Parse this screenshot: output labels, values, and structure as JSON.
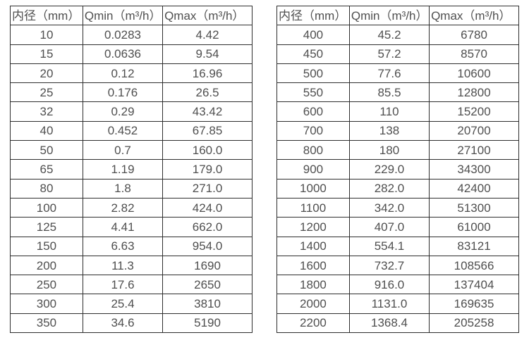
{
  "accent_colors": {
    "border": "#2e2e2e",
    "text": "#4f4f4f",
    "background": "#ffffff"
  },
  "chart_data": [
    {
      "type": "table",
      "title": "flow-rate-table-small-diameters",
      "columns": [
        "内径（mm）",
        "Qmin（m³/h）",
        "Qmax（m³/h）"
      ],
      "rows": [
        [
          "10",
          "0.0283",
          "4.42"
        ],
        [
          "15",
          "0.0636",
          "9.54"
        ],
        [
          "20",
          "0.12",
          "16.96"
        ],
        [
          "25",
          "0.176",
          "26.5"
        ],
        [
          "32",
          "0.29",
          "43.42"
        ],
        [
          "40",
          "0.452",
          "67.85"
        ],
        [
          "50",
          "0.7",
          "160.0"
        ],
        [
          "65",
          "1.19",
          "179.0"
        ],
        [
          "80",
          "1.8",
          "271.0"
        ],
        [
          "100",
          "2.82",
          "424.0"
        ],
        [
          "125",
          "4.41",
          "662.0"
        ],
        [
          "150",
          "6.63",
          "954.0"
        ],
        [
          "200",
          "11.3",
          "1690"
        ],
        [
          "250",
          "17.6",
          "2650"
        ],
        [
          "300",
          "25.4",
          "3810"
        ],
        [
          "350",
          "34.6",
          "5190"
        ]
      ]
    },
    {
      "type": "table",
      "title": "flow-rate-table-large-diameters",
      "columns": [
        "内径（mm）",
        "Qmin（m³/h）",
        "Qmax（m³/h）"
      ],
      "rows": [
        [
          "400",
          "45.2",
          "6780"
        ],
        [
          "450",
          "57.2",
          "8570"
        ],
        [
          "500",
          "77.6",
          "10600"
        ],
        [
          "550",
          "85.5",
          "12800"
        ],
        [
          "600",
          "110",
          "15200"
        ],
        [
          "700",
          "138",
          "20700"
        ],
        [
          "800",
          "180",
          "27100"
        ],
        [
          "900",
          "229.0",
          "34300"
        ],
        [
          "1000",
          "282.0",
          "42400"
        ],
        [
          "1100",
          "342.0",
          "51300"
        ],
        [
          "1200",
          "407.0",
          "61000"
        ],
        [
          "1400",
          "554.1",
          "83121"
        ],
        [
          "1600",
          "732.7",
          "108566"
        ],
        [
          "1800",
          "916.0",
          "137404"
        ],
        [
          "2000",
          "1131.0",
          "169635"
        ],
        [
          "2200",
          "1368.4",
          "205258"
        ]
      ]
    }
  ]
}
